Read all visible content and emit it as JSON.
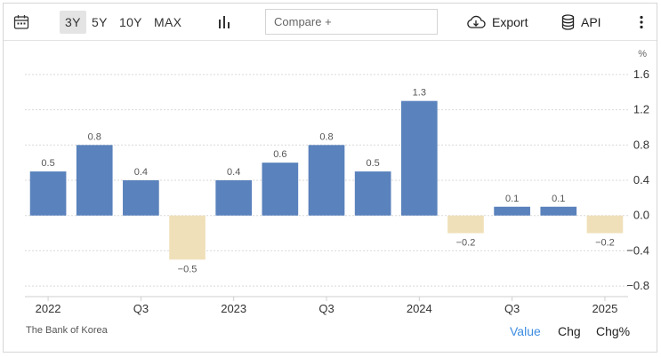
{
  "toolbar": {
    "calendar_icon": "calendar-icon",
    "ranges": [
      {
        "label": "3Y",
        "active": true
      },
      {
        "label": "5Y",
        "active": false
      },
      {
        "label": "10Y",
        "active": false
      },
      {
        "label": "MAX",
        "active": false
      }
    ],
    "chart_type_icon": "bar-chart-icon",
    "compare_placeholder": "Compare +",
    "export_label": "Export",
    "export_icon": "cloud-download-icon",
    "api_label": "API",
    "api_icon": "database-icon",
    "menu_icon": "kebab-menu-icon"
  },
  "chart_data": {
    "type": "bar",
    "categories": [
      "2022 Q1",
      "2022 Q2",
      "2022 Q3",
      "2022 Q4",
      "2023 Q1",
      "2023 Q2",
      "2023 Q3",
      "2023 Q4",
      "2024 Q1",
      "2024 Q2",
      "2024 Q3",
      "2024 Q4",
      "2025 Q1"
    ],
    "values": [
      0.5,
      0.8,
      0.4,
      -0.5,
      0.4,
      0.6,
      0.8,
      0.5,
      1.3,
      -0.2,
      0.1,
      0.1,
      -0.2
    ],
    "data_labels": [
      "0.5",
      "0.8",
      "0.4",
      "−0.5",
      "0.4",
      "0.6",
      "0.8",
      "0.5",
      "1.3",
      "−0.2",
      "0.1",
      "0.1",
      "−0.2"
    ],
    "x_tick_labels": [
      {
        "index": 0,
        "label": "2022"
      },
      {
        "index": 2,
        "label": "Q3"
      },
      {
        "index": 4,
        "label": "2023"
      },
      {
        "index": 6,
        "label": "Q3"
      },
      {
        "index": 8,
        "label": "2024"
      },
      {
        "index": 10,
        "label": "Q3"
      },
      {
        "index": 12,
        "label": "2025"
      }
    ],
    "y_ticks": [
      {
        "value": 1.6,
        "label": "1.6"
      },
      {
        "value": 1.2,
        "label": "1.2"
      },
      {
        "value": 0.8,
        "label": "0.8"
      },
      {
        "value": 0.4,
        "label": "0.4"
      },
      {
        "value": 0.0,
        "label": "0.0"
      },
      {
        "value": -0.4,
        "label": "−0.4"
      },
      {
        "value": -0.8,
        "label": "−0.8"
      }
    ],
    "ylim": [
      -0.92,
      1.72
    ],
    "y_unit": "%",
    "y_axis_position": "right",
    "grid": "horizontal dotted",
    "colors": {
      "positive": "#5a82bc",
      "negative": "#f0e0b9"
    }
  },
  "footer": {
    "source": "The Bank of Korea",
    "views": [
      {
        "label": "Value",
        "active": true
      },
      {
        "label": "Chg",
        "active": false
      },
      {
        "label": "Chg%",
        "active": false
      }
    ]
  }
}
